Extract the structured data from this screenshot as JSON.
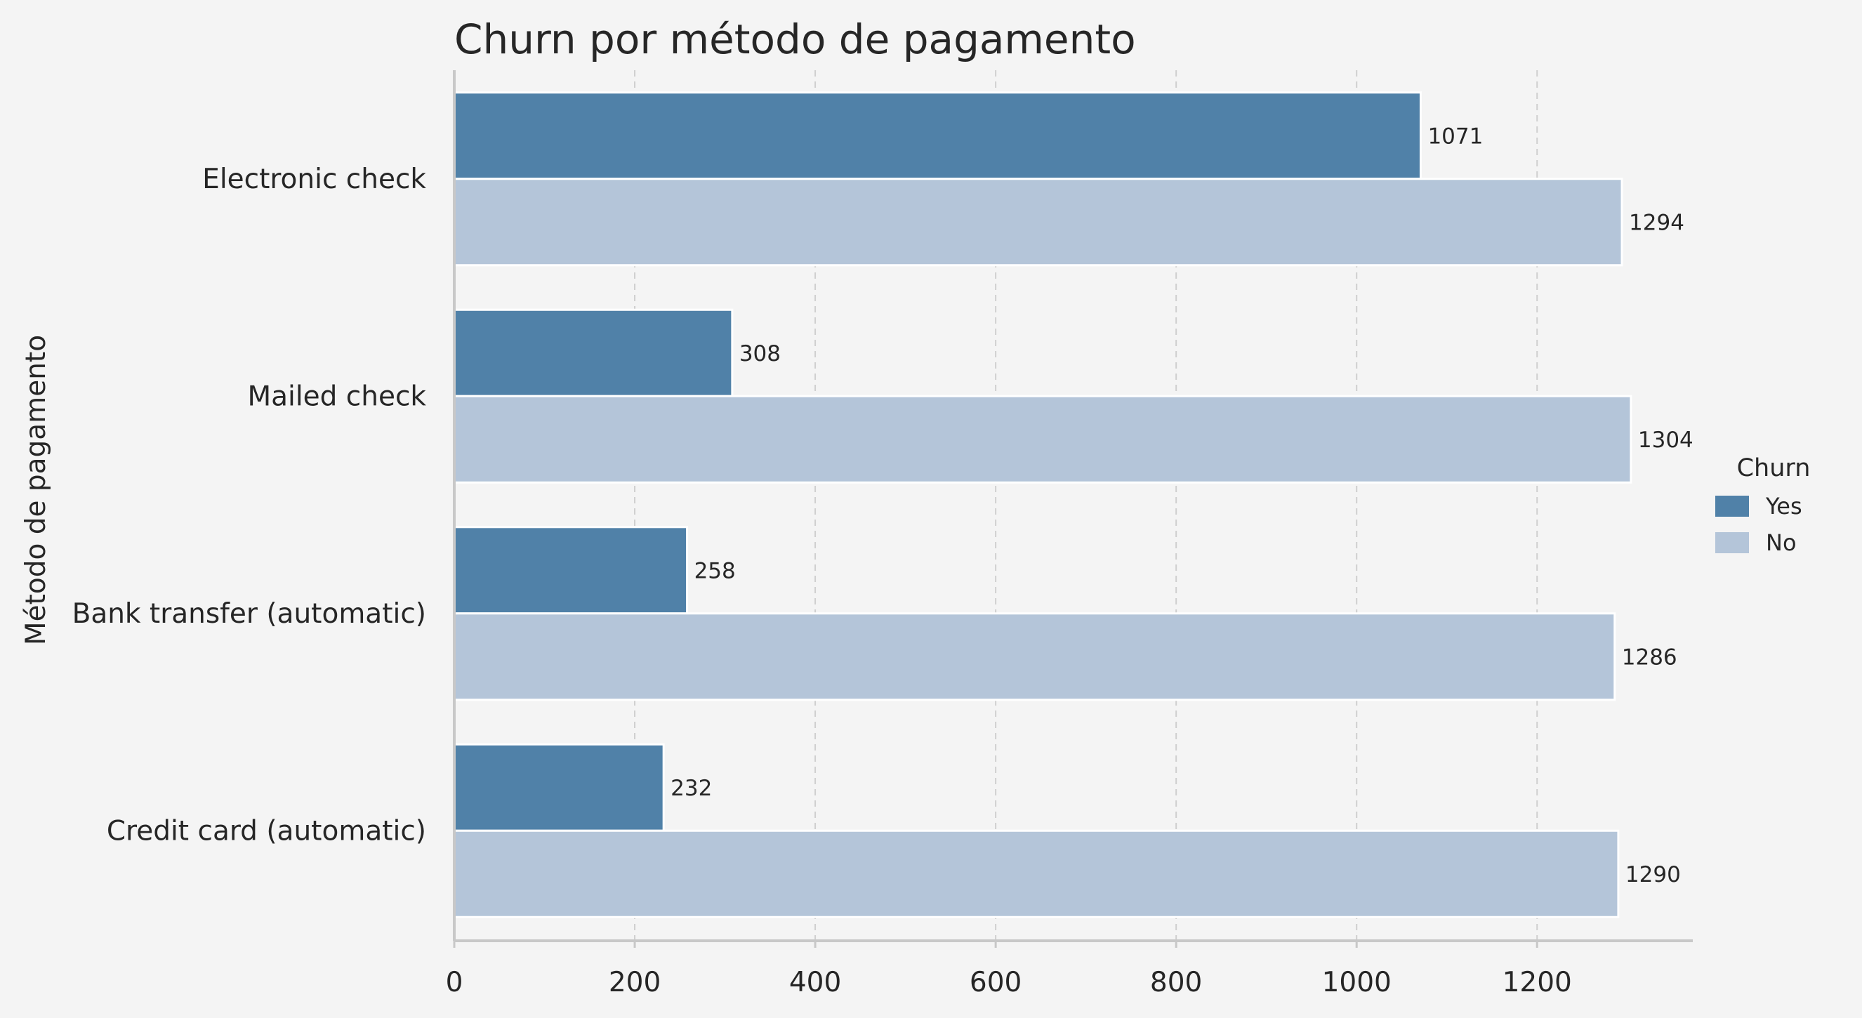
{
  "chart_data": {
    "type": "bar",
    "orientation": "horizontal",
    "title": "Churn por método de pagamento",
    "xlabel": "",
    "ylabel": "Método de pagamento",
    "categories": [
      "Electronic check",
      "Mailed check",
      "Bank transfer (automatic)",
      "Credit card (automatic)"
    ],
    "series": [
      {
        "name": "Yes",
        "values": [
          1071,
          308,
          258,
          232
        ],
        "color": "#5081a8"
      },
      {
        "name": "No",
        "values": [
          1294,
          1304,
          1286,
          1290
        ],
        "color": "#b4c5d9"
      }
    ],
    "data_labels": true,
    "xlim": [
      0,
      1370
    ],
    "xticks": [
      0,
      200,
      400,
      600,
      800,
      1000,
      1200
    ],
    "grid": "vertical dashed",
    "legend": {
      "title": "Churn",
      "placement": "right"
    }
  }
}
